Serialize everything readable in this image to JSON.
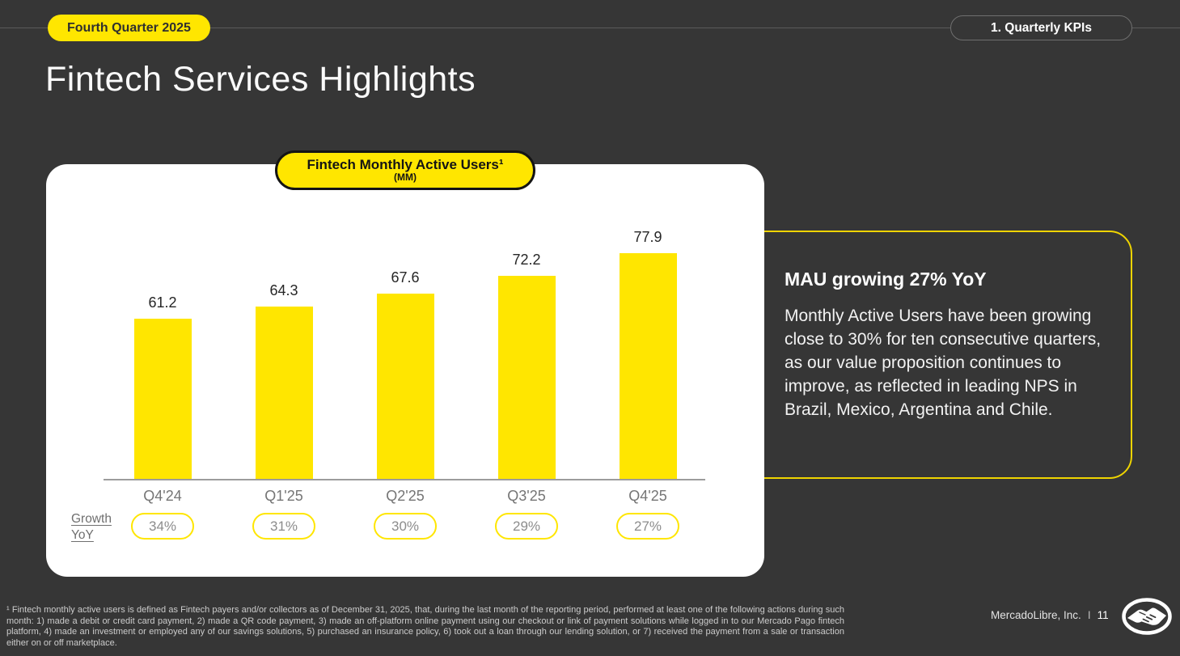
{
  "slide": {
    "quarter_badge": "Fourth Quarter 2025",
    "section_badge": "1. Quarterly KPIs",
    "title": "Fintech Services Highlights",
    "footnote": "¹  Fintech monthly active users is defined as Fintech payers and/or collectors as of December 31, 2025, that, during the last month of the reporting period, performed at least one of the following actions during such month: 1) made a debit or credit card payment, 2) made a QR code payment, 3) made an off-platform online payment using our checkout or link of payment solutions while logged in to our Mercado Pago fintech platform, 4) made an investment or employed any of our savings solutions, 5) purchased an insurance policy, 6) took out a loan through our lending solution, or 7) received the payment from a sale or transaction either on or off marketplace.",
    "company": "MercadoLibre, Inc.",
    "page_separator": "I",
    "page_number": "11"
  },
  "callout": {
    "heading": "MAU growing 27% YoY",
    "body": "Monthly Active Users have been growing close to 30% for ten consecutive quarters, as our value proposition continues to improve, as reflected in leading NPS in Brazil, Mexico, Argentina and Chile."
  },
  "chart_data": {
    "type": "bar",
    "title": "Fintech Monthly Active Users¹",
    "unit_label": "(MM)",
    "categories": [
      "Q4'24",
      "Q1'25",
      "Q2'25",
      "Q3'25",
      "Q4'25"
    ],
    "values": [
      61.2,
      64.3,
      67.6,
      72.2,
      77.9
    ],
    "bar_color": "#FFE600",
    "ylim": [
      20,
      80
    ],
    "grid": false,
    "legend": false,
    "growth_row": {
      "label_lines": [
        "Growth",
        "YoY"
      ],
      "values": [
        "34%",
        "31%",
        "30%",
        "29%",
        "27%"
      ]
    }
  },
  "colors": {
    "accent_yellow": "#FFE600",
    "background": "#363636",
    "card": "#ffffff"
  }
}
